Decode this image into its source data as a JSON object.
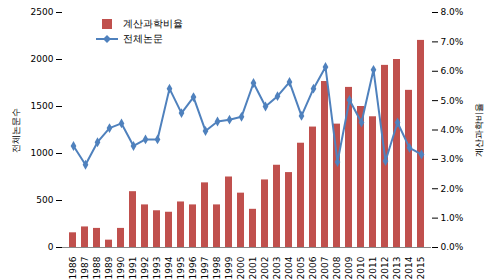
{
  "chart_data": {
    "type": "bar",
    "categories": [
      "1986",
      "1987",
      "1988",
      "1989",
      "1990",
      "1991",
      "1992",
      "1993",
      "1994",
      "1995",
      "1996",
      "1997",
      "1998",
      "1999",
      "2000",
      "2001",
      "2002",
      "2003",
      "2004",
      "2005",
      "2006",
      "2007",
      "2008",
      "2009",
      "2010",
      "2011",
      "2012",
      "2013",
      "2014",
      "2015"
    ],
    "series": [
      {
        "name": "계산과학비율",
        "type": "bar",
        "axis": "y2",
        "color": "#c0504d",
        "values": [
          0.5,
          0.7,
          0.65,
          0.25,
          0.65,
          1.9,
          1.45,
          1.25,
          1.2,
          1.55,
          1.45,
          2.2,
          1.45,
          2.4,
          1.85,
          1.3,
          2.3,
          2.8,
          2.55,
          3.55,
          4.1,
          5.65,
          4.2,
          5.45,
          4.8,
          4.45,
          6.2,
          6.4,
          5.35,
          7.05
        ]
      },
      {
        "name": "전체논문",
        "type": "line",
        "color": "#4f81bd",
        "marker": "diamond",
        "values": [
          1080,
          880,
          1120,
          1270,
          1320,
          1080,
          1150,
          1150,
          1690,
          1430,
          1600,
          1240,
          1340,
          1360,
          1390,
          1750,
          1500,
          1610,
          1760,
          1400,
          1690,
          1920,
          910,
          1570,
          1330,
          1890,
          920,
          1330,
          1060,
          990
        ]
      }
    ],
    "y_label": "전체논문수",
    "y2_label": "계산과학비율",
    "ylim": [
      0,
      2500
    ],
    "yticks": [
      0,
      500,
      1000,
      1500,
      2000,
      2500
    ],
    "y2lim": [
      0,
      8
    ],
    "y2ticks": [
      {
        "value": 0,
        "label": "0.0%"
      },
      {
        "value": 1,
        "label": "1.0%"
      },
      {
        "value": 2,
        "label": "2.0%"
      },
      {
        "value": 3,
        "label": "3.0%"
      },
      {
        "value": 4,
        "label": "4.0%"
      },
      {
        "value": 5,
        "label": "5.0%"
      },
      {
        "value": 6,
        "label": "6.0%"
      },
      {
        "value": 7,
        "label": "7.0%"
      },
      {
        "value": 8,
        "label": "8.0%"
      }
    ],
    "legend": "upper left",
    "grid": false
  }
}
